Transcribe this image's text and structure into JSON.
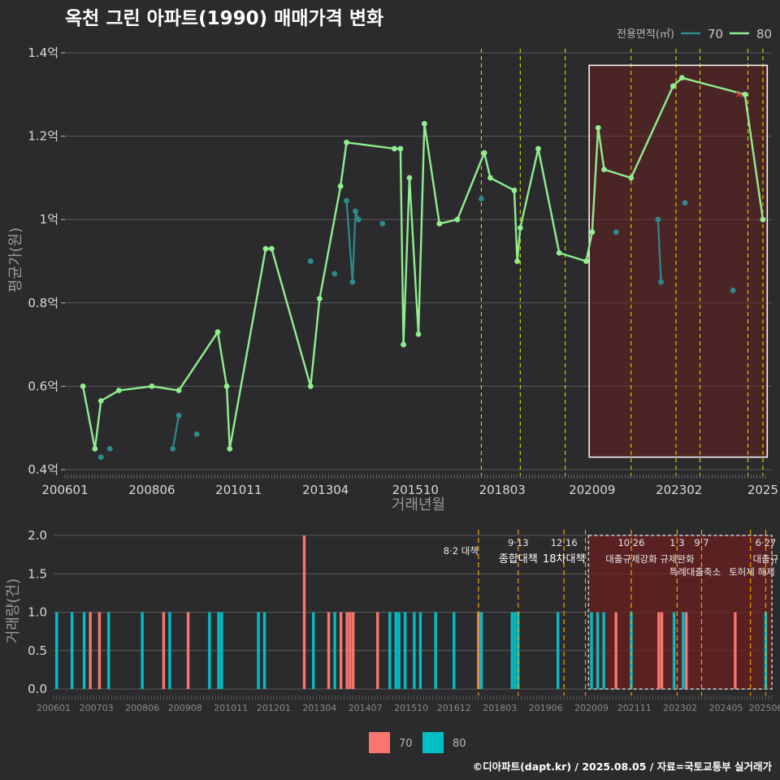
{
  "title": "옥천 그린 아파트(1990) 매매가격 변화",
  "footer": "©디아파트(dapt.kr) / 2025.08.05 / 자료=국토교통부 실거래가",
  "colors": {
    "s70_line": "#2e8b8b",
    "s80_line": "#90ee90",
    "bar70": "#f8766d",
    "bar80": "#00bfc4",
    "policy_line": "#e6e600",
    "policy_line_bottom": "#f0a500",
    "highlight_fill": "#6b1f1f"
  },
  "chart_data": [
    {
      "type": "line",
      "title": "옥천 그린 아파트(1990) 매매가격 변화",
      "xlabel": "거래년월",
      "ylabel": "평균가(원)",
      "legend_title": "전용면적(㎡)",
      "legend_position": "top-right",
      "x_tick_labels": [
        "200601",
        "200806",
        "201011",
        "201304",
        "201510",
        "201803",
        "202009",
        "202302",
        "2025"
      ],
      "y_tick_labels": [
        "0.4억",
        "0.6억",
        "0.8억",
        "1억",
        "1.2억",
        "1.4억"
      ],
      "ylim": [
        0.4,
        1.4
      ],
      "y_unit": "억",
      "grid": true,
      "series": [
        {
          "name": "70",
          "points": [
            {
              "x": "2007-01",
              "y": 0.43
            },
            {
              "x": "2007-04",
              "y": 0.45
            },
            {
              "x": "2009-01",
              "y": 0.45
            },
            {
              "x": "2009-03",
              "y": 0.53
            },
            {
              "x": "2009-09",
              "y": 0.485
            },
            {
              "x": "2012-11",
              "y": 0.9
            },
            {
              "x": "2013-07",
              "y": 0.87
            },
            {
              "x": "2013-11",
              "y": 1.045
            },
            {
              "x": "2014-01",
              "y": 0.85
            },
            {
              "x": "2014-02",
              "y": 1.02
            },
            {
              "x": "2014-03",
              "y": 1.0
            },
            {
              "x": "2014-11",
              "y": 0.99
            },
            {
              "x": "2017-08",
              "y": 1.05
            },
            {
              "x": "2021-05",
              "y": 0.97
            },
            {
              "x": "2022-07",
              "y": 1.0
            },
            {
              "x": "2022-08",
              "y": 0.85
            },
            {
              "x": "2023-04",
              "y": 1.04
            },
            {
              "x": "2024-08",
              "y": 0.83
            }
          ]
        },
        {
          "name": "80",
          "points": [
            {
              "x": "2006-07",
              "y": 0.6
            },
            {
              "x": "2006-11",
              "y": 0.45
            },
            {
              "x": "2007-01",
              "y": 0.565
            },
            {
              "x": "2007-07",
              "y": 0.59
            },
            {
              "x": "2008-06",
              "y": 0.6
            },
            {
              "x": "2009-03",
              "y": 0.59
            },
            {
              "x": "2010-04",
              "y": 0.73
            },
            {
              "x": "2010-07",
              "y": 0.6
            },
            {
              "x": "2010-08",
              "y": 0.45
            },
            {
              "x": "2011-08",
              "y": 0.93
            },
            {
              "x": "2011-10",
              "y": 0.93
            },
            {
              "x": "2012-11",
              "y": 0.6
            },
            {
              "x": "2013-02",
              "y": 0.81
            },
            {
              "x": "2013-09",
              "y": 1.08
            },
            {
              "x": "2013-11",
              "y": 1.185
            },
            {
              "x": "2015-03",
              "y": 1.17
            },
            {
              "x": "2015-05",
              "y": 1.17
            },
            {
              "x": "2015-06",
              "y": 0.7
            },
            {
              "x": "2015-08",
              "y": 1.1
            },
            {
              "x": "2015-11",
              "y": 0.725
            },
            {
              "x": "2016-01",
              "y": 1.23
            },
            {
              "x": "2016-06",
              "y": 0.99
            },
            {
              "x": "2016-12",
              "y": 1.0
            },
            {
              "x": "2017-09",
              "y": 1.16
            },
            {
              "x": "2017-11",
              "y": 1.1
            },
            {
              "x": "2018-07",
              "y": 1.07
            },
            {
              "x": "2018-08",
              "y": 0.9
            },
            {
              "x": "2018-09",
              "y": 0.98
            },
            {
              "x": "2019-03",
              "y": 1.17
            },
            {
              "x": "2019-10",
              "y": 0.92
            },
            {
              "x": "2020-07",
              "y": 0.9
            },
            {
              "x": "2020-09",
              "y": 0.97
            },
            {
              "x": "2020-11",
              "y": 1.22
            },
            {
              "x": "2021-01",
              "y": 1.12
            },
            {
              "x": "2021-10",
              "y": 1.1
            },
            {
              "x": "2022-12",
              "y": 1.32
            },
            {
              "x": "2023-03",
              "y": 1.34
            },
            {
              "x": "2024-12",
              "y": 1.3
            },
            {
              "x": "2025-06",
              "y": 1.0
            }
          ]
        }
      ],
      "marker_x": {
        "x": "2024-10",
        "y": 1.3
      },
      "highlight_range": {
        "from": "2020-08",
        "to": "2025-08",
        "ylim": [
          0.43,
          1.37
        ]
      },
      "policy_dates": [
        "2017-08",
        "2018-09",
        "2019-12",
        "2021-10",
        "2023-01",
        "2023-09",
        "2025-01",
        "2025-06"
      ]
    },
    {
      "type": "bar",
      "xlabel": "",
      "ylabel": "거래량(건)",
      "x_tick_labels": [
        "200601",
        "200703",
        "200806",
        "200908",
        "201011",
        "201201",
        "201304",
        "201407",
        "201510",
        "201612",
        "201803",
        "201906",
        "202009",
        "202111",
        "202302",
        "202405",
        "202506"
      ],
      "y_tick_labels": [
        "0.0",
        "0.5",
        "1.0",
        "1.5",
        "2.0"
      ],
      "ylim": [
        0,
        2
      ],
      "legend_position": "bottom",
      "series": [
        {
          "name": "70",
          "points": [
            {
              "x": "2007-01",
              "y": 1
            },
            {
              "x": "2007-04",
              "y": 1
            },
            {
              "x": "2009-01",
              "y": 1
            },
            {
              "x": "2009-09",
              "y": 1
            },
            {
              "x": "2012-11",
              "y": 2
            },
            {
              "x": "2013-07",
              "y": 1
            },
            {
              "x": "2013-11",
              "y": 1
            },
            {
              "x": "2014-01",
              "y": 1
            },
            {
              "x": "2014-02",
              "y": 1
            },
            {
              "x": "2014-03",
              "y": 1
            },
            {
              "x": "2014-11",
              "y": 1
            },
            {
              "x": "2017-08",
              "y": 1
            },
            {
              "x": "2021-05",
              "y": 1
            },
            {
              "x": "2022-07",
              "y": 1
            },
            {
              "x": "2022-08",
              "y": 1
            },
            {
              "x": "2023-04",
              "y": 1
            },
            {
              "x": "2024-08",
              "y": 1
            }
          ]
        },
        {
          "name": "80",
          "points": [
            {
              "x": "2006-02",
              "y": 1
            },
            {
              "x": "2006-07",
              "y": 1
            },
            {
              "x": "2006-11",
              "y": 1
            },
            {
              "x": "2007-07",
              "y": 1
            },
            {
              "x": "2008-06",
              "y": 1
            },
            {
              "x": "2009-03",
              "y": 1
            },
            {
              "x": "2010-04",
              "y": 1
            },
            {
              "x": "2010-07",
              "y": 1
            },
            {
              "x": "2010-08",
              "y": 1
            },
            {
              "x": "2011-08",
              "y": 1
            },
            {
              "x": "2011-10",
              "y": 1
            },
            {
              "x": "2013-02",
              "y": 1
            },
            {
              "x": "2013-09",
              "y": 1
            },
            {
              "x": "2015-03",
              "y": 1
            },
            {
              "x": "2015-05",
              "y": 1
            },
            {
              "x": "2015-06",
              "y": 1
            },
            {
              "x": "2015-08",
              "y": 1
            },
            {
              "x": "2015-11",
              "y": 1
            },
            {
              "x": "2016-01",
              "y": 1
            },
            {
              "x": "2016-06",
              "y": 1
            },
            {
              "x": "2016-12",
              "y": 1
            },
            {
              "x": "2017-09",
              "y": 1
            },
            {
              "x": "2018-07",
              "y": 1
            },
            {
              "x": "2018-08",
              "y": 1
            },
            {
              "x": "2018-09",
              "y": 1
            },
            {
              "x": "2019-10",
              "y": 1
            },
            {
              "x": "2020-09",
              "y": 1
            },
            {
              "x": "2020-11",
              "y": 1
            },
            {
              "x": "2021-01",
              "y": 1
            },
            {
              "x": "2021-10",
              "y": 1
            },
            {
              "x": "2022-12",
              "y": 1
            },
            {
              "x": "2023-03",
              "y": 1
            },
            {
              "x": "2025-06",
              "y": 1
            }
          ]
        }
      ],
      "highlight_range": {
        "from": "2020-08",
        "to": "2025-08"
      },
      "policy_dates": [
        "2017-08",
        "2018-09",
        "2019-12",
        "2020-07",
        "2021-10",
        "2023-01",
        "2023-09",
        "2025-01",
        "2025-06"
      ],
      "annotations": [
        {
          "x": "2017-08",
          "lines": [
            "8·2 대책"
          ],
          "style": "large"
        },
        {
          "x": "2018-09",
          "lines": [
            "9·13",
            "종합대책"
          ],
          "style": "large"
        },
        {
          "x": "2019-12",
          "lines": [
            "12·16",
            "18차대책"
          ],
          "style": "large"
        },
        {
          "x": "2021-10",
          "lines": [
            "10·26",
            "대출규제강화"
          ],
          "style": "small"
        },
        {
          "x": "2023-01",
          "lines": [
            "1·3",
            "규제완화"
          ],
          "style": "small"
        },
        {
          "x": "2023-09",
          "lines": [
            "9·7",
            "특례대출축소"
          ],
          "style": "small"
        },
        {
          "x": "2025-01",
          "lines": [
            "토허제 해제"
          ],
          "style": "small"
        },
        {
          "x": "2025-06",
          "lines": [
            "6·27",
            "대출규"
          ],
          "style": "small"
        }
      ]
    }
  ]
}
